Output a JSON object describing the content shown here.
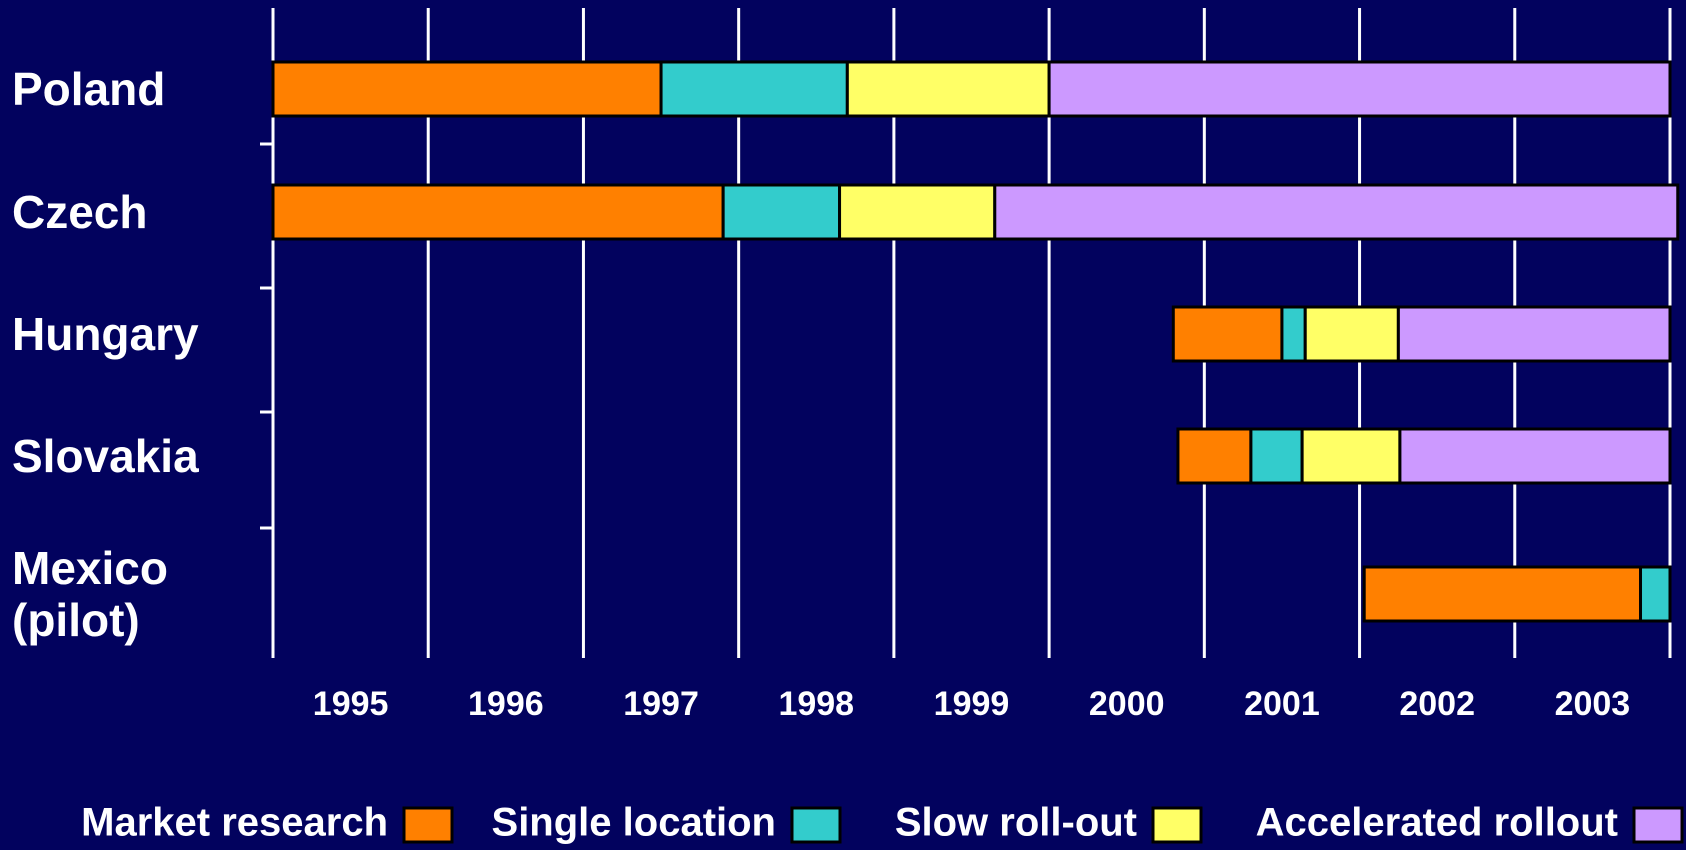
{
  "chart_data": {
    "type": "gantt",
    "categories": [
      "Poland",
      "Czech",
      "Hungary",
      "Slovakia",
      "Mexico (pilot)"
    ],
    "start": [
      1995,
      1995,
      2000.8,
      2000.83,
      2002.03
    ],
    "series": [
      {
        "name": "Market research",
        "color": "#ff8000",
        "values": [
          2.5,
          2.9,
          0.7,
          0.47,
          1.78
        ]
      },
      {
        "name": "Single location",
        "color": "#33cccc",
        "values": [
          1.2,
          0.75,
          0.15,
          0.33,
          0.19
        ]
      },
      {
        "name": "Slow roll-out",
        "color": "#ffff66",
        "values": [
          1.3,
          1.0,
          0.6,
          0.63,
          null
        ]
      },
      {
        "name": "Accelerated rollout",
        "color": "#cc99ff",
        "values": [
          4.0,
          4.4,
          1.75,
          1.74,
          null
        ]
      }
    ],
    "xlim": [
      1995,
      2004
    ],
    "xticks": [
      1995,
      1996,
      1997,
      1998,
      1999,
      2000,
      2001,
      2002,
      2003,
      2004
    ],
    "year_labels": [
      "1995",
      "1996",
      "1997",
      "1998",
      "1999",
      "2000",
      "2001",
      "2002",
      "2003"
    ],
    "grid": true
  }
}
